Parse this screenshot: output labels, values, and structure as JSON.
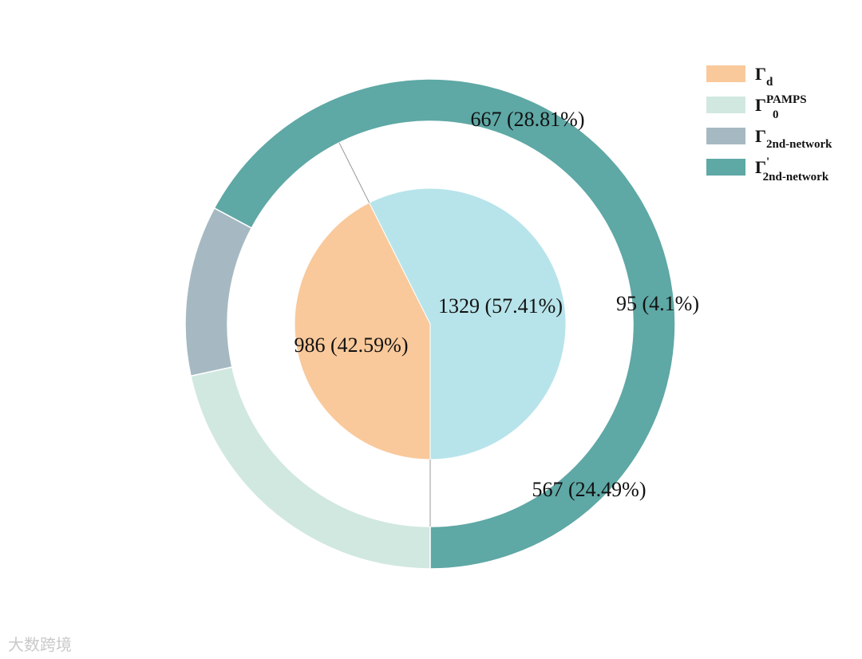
{
  "chart_data": {
    "type": "pie",
    "inner": {
      "slices": [
        {
          "label": "986 (42.59%)",
          "value": 986,
          "percent": 42.59,
          "color": "#f9c99b",
          "legend": "d"
        },
        {
          "label": "1329 (57.41%)",
          "value": 1329,
          "percent": 57.41,
          "color": "#b7e4ea",
          "legend": ""
        }
      ]
    },
    "outer": {
      "slices": [
        {
          "label": "667 (28.81%)",
          "value": 667,
          "percent": 28.81,
          "color": "#d1e8e1",
          "legend": "0",
          "legend_sup": "PAMPS"
        },
        {
          "label": "95 (4.1%)",
          "value": 95,
          "percent": 4.1,
          "color": "#a6b9c2",
          "legend": "2nd-network",
          "legend_sup": ""
        },
        {
          "label": "567 (24.49%)",
          "value": 567,
          "percent": 24.49,
          "color": "#5ea8a5",
          "legend": "2nd-network",
          "legend_sup": "'"
        }
      ]
    },
    "legend": {
      "position": "top-right",
      "items": [
        {
          "symbol": "Γ",
          "sub": "d",
          "sup": "",
          "color": "#f9c99b"
        },
        {
          "symbol": "Γ",
          "sub": "0",
          "sup": "PAMPS",
          "color": "#d1e8e1"
        },
        {
          "symbol": "Γ",
          "sub": "2nd-network",
          "sup": "",
          "color": "#a6b9c2"
        },
        {
          "symbol": "Γ",
          "sub": "2nd-network",
          "sup": "'",
          "color": "#5ea8a5"
        }
      ]
    }
  },
  "watermark": "大数跨境"
}
